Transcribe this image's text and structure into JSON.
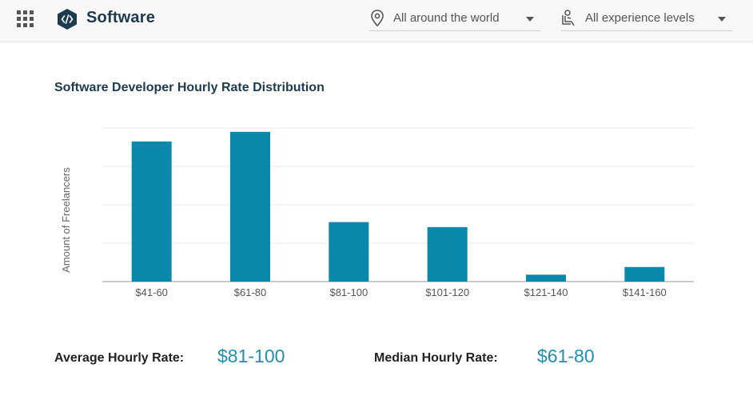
{
  "header": {
    "title": "Software",
    "location_filter": "All around the world",
    "experience_filter": "All experience levels",
    "icons": {
      "apps": "apps-grid-icon",
      "logo": "code-hexagon-icon",
      "location": "location-pin-icon",
      "experience": "person-seat-icon",
      "dropdown": "caret-down-icon"
    }
  },
  "chart_data": {
    "type": "bar",
    "title": "Software Developer Hourly Rate Distribution",
    "xlabel": "",
    "ylabel": "Amount of Freelancers",
    "categories": [
      "$41-60",
      "$61-80",
      "$81-100",
      "$101-120",
      "$121-140",
      "$141-160"
    ],
    "values": [
      36.5,
      39,
      15.5,
      14.2,
      1.8,
      3.8
    ],
    "ylim": [
      0,
      40
    ],
    "grid": true,
    "y_tick_labels_shown": false,
    "bar_color": "#0a89ad"
  },
  "stats": {
    "average_label": "Average Hourly Rate:",
    "average_value": "$81-100",
    "median_label": "Median Hourly Rate:",
    "median_value": "$61-80"
  },
  "colors": {
    "accent": "#1f8fb1",
    "bar": "#0a89ad",
    "brand_text": "#1d3b4f"
  }
}
